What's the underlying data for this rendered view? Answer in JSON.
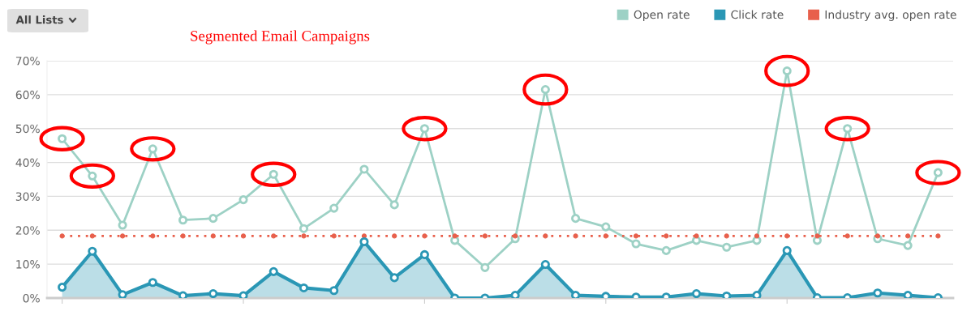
{
  "chart_data": {
    "type": "line",
    "title": "Segmented Email Campaigns",
    "annotations": [
      "All Lists"
    ],
    "categories": [
      null,
      null,
      null,
      null,
      null,
      null,
      null,
      null,
      null,
      null,
      null,
      null,
      null,
      null,
      null,
      null,
      null,
      null,
      null,
      null,
      null,
      null,
      null,
      null,
      null,
      null,
      null,
      null,
      null,
      null
    ],
    "series": [
      {
        "name": "Open rate",
        "color": "#9dd1c5",
        "marker": "circle",
        "line_style": "solid",
        "values": [
          47,
          36,
          21.5,
          44,
          23,
          23.5,
          29,
          36.5,
          20.5,
          26.5,
          38,
          27.5,
          50,
          17,
          9,
          17.5,
          61.5,
          23.5,
          21,
          16,
          14,
          17,
          15,
          17,
          67,
          17,
          50,
          17.5,
          15.5,
          37
        ]
      },
      {
        "name": "Click rate",
        "color": "#2a97b5",
        "type": "area",
        "marker": "circle",
        "line_style": "solid",
        "values": [
          3.2,
          13.8,
          1,
          4.6,
          0.7,
          1.3,
          0.7,
          7.8,
          3,
          2.2,
          16.6,
          6,
          12.8,
          0,
          0,
          0.8,
          9.9,
          0.8,
          0.5,
          0.3,
          0.3,
          1.3,
          0.6,
          0.8,
          14,
          0.1,
          0.1,
          1.5,
          0.8,
          0.1
        ]
      },
      {
        "name": "Industry avg. open rate",
        "color": "#e8604c",
        "marker": "circle",
        "line_style": "dotted",
        "values": [
          18.3,
          18.3,
          18.3,
          18.3,
          18.3,
          18.3,
          18.3,
          18.3,
          18.3,
          18.3,
          18.3,
          18.3,
          18.3,
          18.3,
          18.3,
          18.3,
          18.3,
          18.3,
          18.3,
          18.3,
          18.3,
          18.3,
          18.3,
          18.3,
          18.3,
          18.3,
          18.3,
          18.3,
          18.3,
          18.3
        ]
      }
    ],
    "ylim": [
      0,
      70
    ],
    "yticks": [
      {
        "value": 0,
        "label": "0%"
      },
      {
        "value": 10,
        "label": "10%"
      },
      {
        "value": 20,
        "label": "20%"
      },
      {
        "value": 30,
        "label": "30%"
      },
      {
        "value": 40,
        "label": "40%"
      },
      {
        "value": 50,
        "label": "50%"
      },
      {
        "value": 60,
        "label": "60%"
      },
      {
        "value": 70,
        "label": "70%"
      }
    ],
    "grid": "y",
    "legend": "top right"
  }
}
